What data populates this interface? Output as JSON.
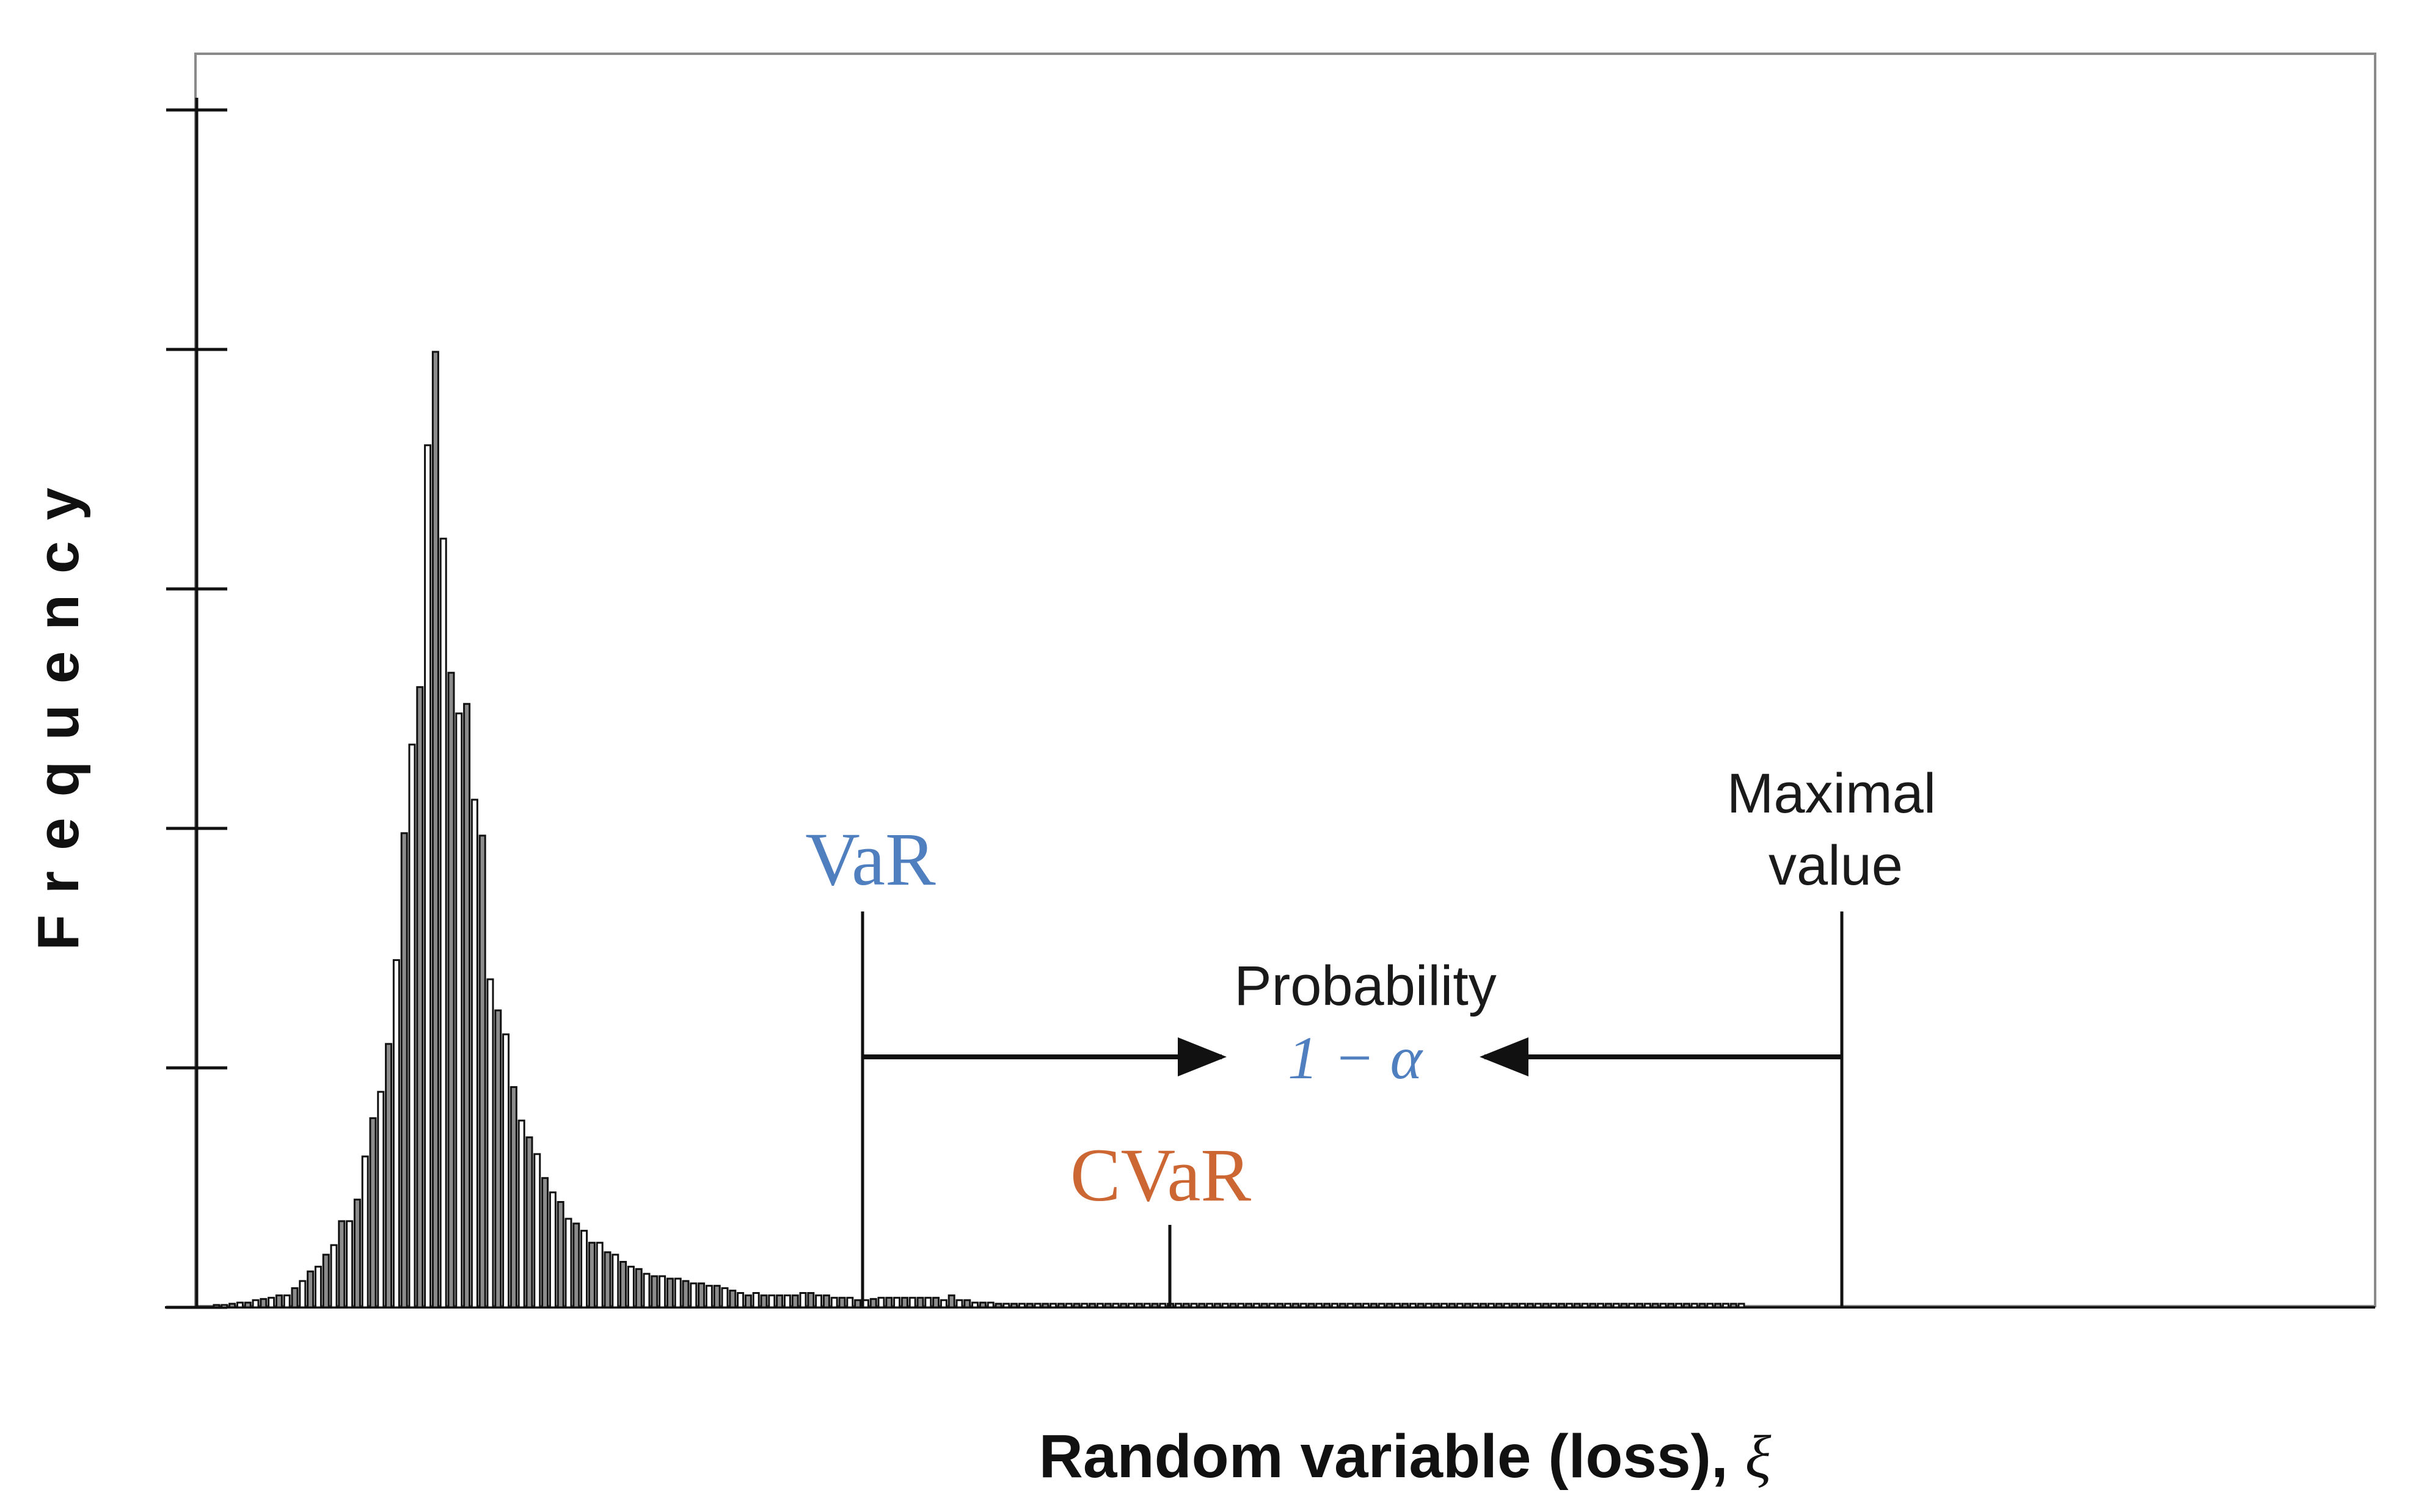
{
  "chart_data": {
    "type": "bar",
    "title": "",
    "xlabel": "Random variable (loss), ",
    "xlabel_symbol": "ξ",
    "ylabel": "Frequency",
    "ylim": [
      0,
      5
    ],
    "y_ticks": [
      0,
      1,
      2,
      3,
      4,
      5
    ],
    "show_tick_labels": false,
    "grid": false,
    "bar_fill_colors": [
      "#8c8c8c",
      "#ffffff"
    ],
    "bar_stroke_color": "#111111",
    "values": [
      0.01,
      0.01,
      0.015,
      0.02,
      0.02,
      0.03,
      0.035,
      0.04,
      0.05,
      0.05,
      0.08,
      0.11,
      0.15,
      0.17,
      0.22,
      0.26,
      0.36,
      0.36,
      0.45,
      0.63,
      0.79,
      0.9,
      1.1,
      1.45,
      1.98,
      2.35,
      2.59,
      3.6,
      3.99,
      3.21,
      2.65,
      2.48,
      2.52,
      2.12,
      1.97,
      1.37,
      1.24,
      1.14,
      0.92,
      0.78,
      0.71,
      0.64,
      0.54,
      0.48,
      0.44,
      0.37,
      0.35,
      0.32,
      0.27,
      0.27,
      0.23,
      0.22,
      0.19,
      0.17,
      0.16,
      0.14,
      0.13,
      0.13,
      0.12,
      0.12,
      0.11,
      0.1,
      0.1,
      0.09,
      0.09,
      0.08,
      0.07,
      0.06,
      0.05,
      0.06,
      0.05,
      0.05,
      0.05,
      0.05,
      0.05,
      0.06,
      0.06,
      0.05,
      0.05,
      0.04,
      0.04,
      0.04,
      0.03,
      0.03,
      0.035,
      0.04,
      0.04,
      0.04,
      0.04,
      0.04,
      0.04,
      0.04,
      0.04,
      0.03,
      0.05,
      0.03,
      0.03,
      0.02,
      0.02,
      0.02,
      0.015,
      0.015,
      0.015,
      0.015,
      0.015,
      0.015,
      0.015,
      0.015,
      0.015,
      0.015,
      0.015,
      0.015,
      0.015,
      0.015,
      0.015,
      0.015,
      0.015,
      0.015,
      0.015,
      0.015,
      0.015,
      0.015,
      0.015,
      0.015,
      0.015,
      0.015,
      0.015,
      0.015,
      0.015,
      0.015,
      0.015,
      0.015,
      0.015,
      0.015,
      0.015,
      0.015,
      0.015,
      0.015,
      0.015,
      0.015,
      0.015,
      0.015,
      0.015,
      0.015,
      0.015,
      0.015,
      0.015,
      0.015,
      0.015,
      0.015,
      0.015,
      0.015,
      0.015,
      0.015,
      0.015,
      0.015,
      0.015,
      0.015,
      0.015,
      0.015,
      0.015,
      0.015,
      0.015,
      0.015,
      0.015,
      0.015,
      0.015,
      0.015,
      0.015,
      0.015,
      0.015,
      0.015,
      0.015,
      0.015,
      0.015,
      0.015,
      0.015,
      0.015,
      0.015,
      0.015,
      0.015,
      0.015,
      0.015,
      0.015,
      0.015,
      0.015,
      0.015,
      0.015,
      0.015,
      0.015,
      0.015,
      0.015,
      0.015,
      0.015,
      0.015,
      0.015
    ],
    "annotations": {
      "var_label": "VaR",
      "var_color": "#4f7fbf",
      "cvar_label": "CVaR",
      "cvar_color": "#cc6633",
      "max_label_line1": "Maximal",
      "max_label_line2": "value",
      "prob_label": "Probability",
      "prob_value": "1 − α",
      "prob_color": "#4f7fbf"
    }
  }
}
